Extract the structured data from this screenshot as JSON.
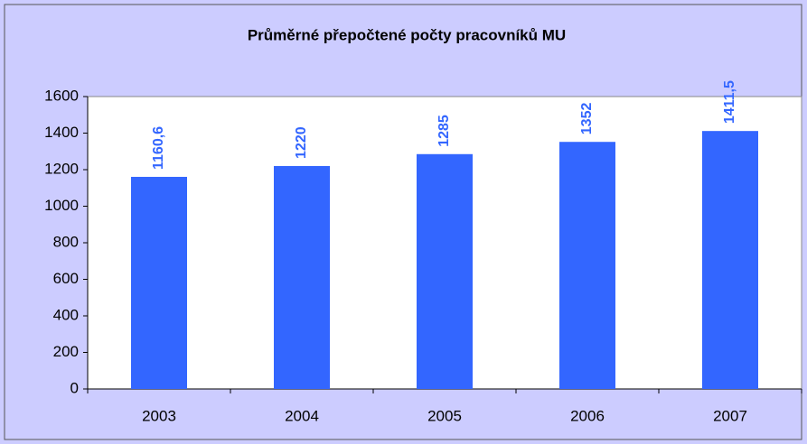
{
  "chart_data": {
    "type": "bar",
    "title": "Průměrné přepočtené počty pracovníků MU",
    "categories": [
      "2003",
      "2004",
      "2005",
      "2006",
      "2007"
    ],
    "values": [
      1160.6,
      1220,
      1285,
      1352,
      1411.5
    ],
    "value_labels": [
      "1160,6",
      "1220",
      "1285",
      "1352",
      "1411,5"
    ],
    "color": "#3366ff",
    "ylim": [
      0,
      1600
    ],
    "yticks": [
      0,
      200,
      400,
      600,
      800,
      1000,
      1200,
      1400,
      1600
    ],
    "grid": false
  }
}
